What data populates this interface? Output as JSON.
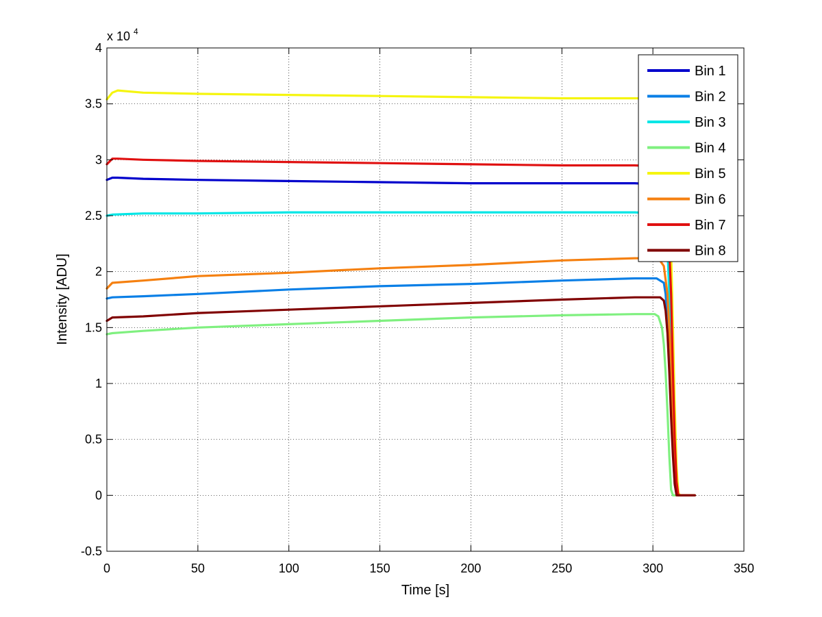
{
  "chart_data": {
    "type": "line",
    "title": "",
    "xlabel": "Time [s]",
    "ylabel": "Intensity [ADU]",
    "y_exponent_label": "x 10",
    "y_exponent_power": "4",
    "xlim": [
      0,
      350
    ],
    "ylim": [
      -0.5,
      4
    ],
    "x_ticks": [
      0,
      50,
      100,
      150,
      200,
      250,
      300,
      350
    ],
    "x_tick_labels": [
      "0",
      "50",
      "100",
      "150",
      "200",
      "250",
      "300",
      "350"
    ],
    "y_ticks": [
      -0.5,
      0,
      0.5,
      1,
      1.5,
      2,
      2.5,
      3,
      3.5,
      4
    ],
    "y_tick_labels": [
      "-0.5",
      "0",
      "0.5",
      "1",
      "1.5",
      "2",
      "2.5",
      "3",
      "3.5",
      "4"
    ],
    "grid": true,
    "legend_position": "top-right",
    "series": [
      {
        "name": "Bin 1",
        "color": "#0000cc",
        "points": [
          [
            0,
            2.82
          ],
          [
            3,
            2.84
          ],
          [
            6,
            2.84
          ],
          [
            20,
            2.83
          ],
          [
            50,
            2.82
          ],
          [
            100,
            2.81
          ],
          [
            150,
            2.8
          ],
          [
            200,
            2.79
          ],
          [
            250,
            2.79
          ],
          [
            290,
            2.79
          ],
          [
            303,
            2.78
          ],
          [
            306,
            2.7
          ],
          [
            308,
            2.4
          ],
          [
            310,
            1.5
          ],
          [
            311,
            0.9
          ],
          [
            312,
            0.35
          ],
          [
            313,
            0.06
          ],
          [
            314,
            0.0
          ],
          [
            323,
            0.0
          ]
        ]
      },
      {
        "name": "Bin 2",
        "color": "#0a7fe6",
        "points": [
          [
            0,
            1.76
          ],
          [
            3,
            1.77
          ],
          [
            20,
            1.78
          ],
          [
            50,
            1.8
          ],
          [
            100,
            1.84
          ],
          [
            150,
            1.87
          ],
          [
            200,
            1.89
          ],
          [
            250,
            1.92
          ],
          [
            290,
            1.94
          ],
          [
            302,
            1.94
          ],
          [
            306,
            1.9
          ],
          [
            307,
            1.8
          ],
          [
            308,
            1.55
          ],
          [
            309,
            1.2
          ],
          [
            310,
            0.8
          ],
          [
            311,
            0.4
          ],
          [
            312,
            0.1
          ],
          [
            313,
            0.0
          ],
          [
            323,
            0.0
          ]
        ]
      },
      {
        "name": "Bin 3",
        "color": "#00e6e6",
        "points": [
          [
            0,
            2.5
          ],
          [
            3,
            2.51
          ],
          [
            20,
            2.52
          ],
          [
            50,
            2.52
          ],
          [
            100,
            2.53
          ],
          [
            150,
            2.53
          ],
          [
            200,
            2.53
          ],
          [
            250,
            2.53
          ],
          [
            290,
            2.53
          ],
          [
            303,
            2.52
          ],
          [
            306,
            2.45
          ],
          [
            308,
            2.2
          ],
          [
            310,
            1.4
          ],
          [
            311,
            0.85
          ],
          [
            312,
            0.35
          ],
          [
            313,
            0.06
          ],
          [
            314,
            0.0
          ],
          [
            323,
            0.0
          ]
        ]
      },
      {
        "name": "Bin 4",
        "color": "#7ff07f",
        "points": [
          [
            0,
            1.44
          ],
          [
            3,
            1.45
          ],
          [
            20,
            1.47
          ],
          [
            50,
            1.5
          ],
          [
            100,
            1.53
          ],
          [
            150,
            1.56
          ],
          [
            200,
            1.59
          ],
          [
            250,
            1.61
          ],
          [
            290,
            1.62
          ],
          [
            301,
            1.62
          ],
          [
            303,
            1.6
          ],
          [
            305,
            1.5
          ],
          [
            306,
            1.35
          ],
          [
            307,
            1.1
          ],
          [
            308,
            0.75
          ],
          [
            309,
            0.35
          ],
          [
            310,
            0.05
          ],
          [
            311,
            0.0
          ],
          [
            323,
            0.0
          ]
        ]
      },
      {
        "name": "Bin 5",
        "color": "#f5f510",
        "points": [
          [
            0,
            3.54
          ],
          [
            3,
            3.6
          ],
          [
            6,
            3.62
          ],
          [
            20,
            3.6
          ],
          [
            50,
            3.59
          ],
          [
            100,
            3.58
          ],
          [
            150,
            3.57
          ],
          [
            200,
            3.56
          ],
          [
            250,
            3.55
          ],
          [
            290,
            3.55
          ],
          [
            303,
            3.55
          ],
          [
            306,
            3.45
          ],
          [
            308,
            3.1
          ],
          [
            310,
            2.2
          ],
          [
            311,
            1.5
          ],
          [
            312,
            0.8
          ],
          [
            313,
            0.25
          ],
          [
            314,
            0.02
          ],
          [
            315,
            0.0
          ],
          [
            323,
            0.0
          ]
        ]
      },
      {
        "name": "Bin 6",
        "color": "#f58010",
        "points": [
          [
            0,
            1.85
          ],
          [
            3,
            1.9
          ],
          [
            20,
            1.92
          ],
          [
            50,
            1.96
          ],
          [
            100,
            1.99
          ],
          [
            150,
            2.03
          ],
          [
            200,
            2.06
          ],
          [
            250,
            2.1
          ],
          [
            290,
            2.12
          ],
          [
            303,
            2.12
          ],
          [
            306,
            2.05
          ],
          [
            308,
            1.8
          ],
          [
            310,
            1.2
          ],
          [
            311,
            0.7
          ],
          [
            312,
            0.3
          ],
          [
            313,
            0.05
          ],
          [
            314,
            0.0
          ],
          [
            323,
            0.0
          ]
        ]
      },
      {
        "name": "Bin 7",
        "color": "#e01010",
        "points": [
          [
            0,
            2.96
          ],
          [
            3,
            3.01
          ],
          [
            6,
            3.01
          ],
          [
            20,
            3.0
          ],
          [
            50,
            2.99
          ],
          [
            100,
            2.98
          ],
          [
            150,
            2.97
          ],
          [
            200,
            2.96
          ],
          [
            250,
            2.95
          ],
          [
            290,
            2.95
          ],
          [
            303,
            2.94
          ],
          [
            306,
            2.85
          ],
          [
            308,
            2.6
          ],
          [
            310,
            1.8
          ],
          [
            311,
            1.1
          ],
          [
            312,
            0.5
          ],
          [
            313,
            0.12
          ],
          [
            314,
            0.0
          ],
          [
            323,
            0.0
          ]
        ]
      },
      {
        "name": "Bin 8",
        "color": "#800000",
        "points": [
          [
            0,
            1.56
          ],
          [
            3,
            1.59
          ],
          [
            20,
            1.6
          ],
          [
            50,
            1.63
          ],
          [
            100,
            1.66
          ],
          [
            150,
            1.69
          ],
          [
            200,
            1.72
          ],
          [
            250,
            1.75
          ],
          [
            290,
            1.77
          ],
          [
            304,
            1.77
          ],
          [
            306,
            1.74
          ],
          [
            307,
            1.65
          ],
          [
            308,
            1.45
          ],
          [
            309,
            1.1
          ],
          [
            310,
            0.7
          ],
          [
            311,
            0.35
          ],
          [
            312,
            0.1
          ],
          [
            313,
            0.0
          ],
          [
            323,
            0.0
          ]
        ]
      }
    ]
  }
}
